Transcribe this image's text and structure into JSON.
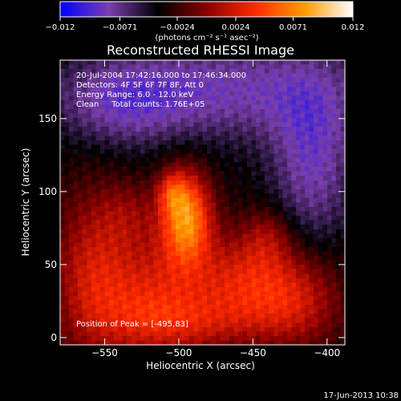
{
  "chart_data": {
    "type": "heatmap",
    "title": "Reconstructed RHESSI Image",
    "xlabel": "Heliocentric X (arcsec)",
    "ylabel": "Heliocentric Y (arcsec)",
    "xlim": [
      -580,
      -388
    ],
    "ylim": [
      -5,
      190
    ],
    "x_ticks": [
      -550,
      -500,
      -450,
      -400
    ],
    "x_tick_labels": [
      "−550",
      "−500",
      "−450",
      "−400"
    ],
    "y_ticks": [
      0,
      50,
      100,
      150
    ],
    "y_tick_labels": [
      "0",
      "50",
      "100",
      "150"
    ],
    "grid": false,
    "colorbar": {
      "position": "top",
      "range": [
        -0.012,
        0.012
      ],
      "ticks": [
        -0.012,
        -0.0071,
        -0.0024,
        0.0024,
        0.0071,
        0.012
      ],
      "tick_labels": [
        "−0.012",
        "−0.0071",
        "−0.0024",
        "0.0024",
        "0.0071",
        "0.012"
      ],
      "unit_label": "(photons cm⁻² s⁻¹ asec⁻²)",
      "colors": [
        "#0000ff",
        "#7a3fae",
        "#000000",
        "#8a0000",
        "#ff2a00",
        "#ff9a00",
        "#ffffff"
      ]
    },
    "annotations": [
      "20-Jul-2004 17:42:16.000 to 17:46:34.000",
      "Detectors: 4F 5F 6F 7F 8F, Att 0",
      "Energy Range: 6.0 - 12.0 keV",
      "Clean     Total counts: 1.76E+05"
    ],
    "peak_label": "Position of Peak = [-495,83]",
    "peak": {
      "x": -495,
      "y": 83
    },
    "sources": [
      {
        "x": -495,
        "y": 83,
        "sx": 12,
        "sy": 22,
        "amp": 0.0105
      },
      {
        "x": -505,
        "y": 100,
        "sx": 7,
        "sy": 10,
        "amp": 0.004
      },
      {
        "x": -455,
        "y": 40,
        "sx": 26,
        "sy": 22,
        "amp": 0.0055
      },
      {
        "x": -520,
        "y": 30,
        "sx": 28,
        "sy": 30,
        "amp": 0.0055
      },
      {
        "x": -560,
        "y": 45,
        "sx": 18,
        "sy": 40,
        "amp": 0.0045
      },
      {
        "x": -420,
        "y": 25,
        "sx": 22,
        "sy": 22,
        "amp": 0.0045
      },
      {
        "x": -490,
        "y": 10,
        "sx": 40,
        "sy": 14,
        "amp": 0.0035
      },
      {
        "x": -440,
        "y": 70,
        "sx": 12,
        "sy": 14,
        "amp": 0.003
      },
      {
        "x": -535,
        "y": 85,
        "sx": 14,
        "sy": 16,
        "amp": 0.0025
      }
    ],
    "background": [
      {
        "x": -470,
        "y": 170,
        "sx": 70,
        "sy": 25,
        "amp": -0.0045
      },
      {
        "x": -410,
        "y": 120,
        "sx": 20,
        "sy": 40,
        "amp": -0.0045
      },
      {
        "x": -540,
        "y": 160,
        "sx": 30,
        "sy": 20,
        "amp": -0.003
      }
    ]
  },
  "footer": {
    "date": "17-Jun-2013 10:38"
  }
}
